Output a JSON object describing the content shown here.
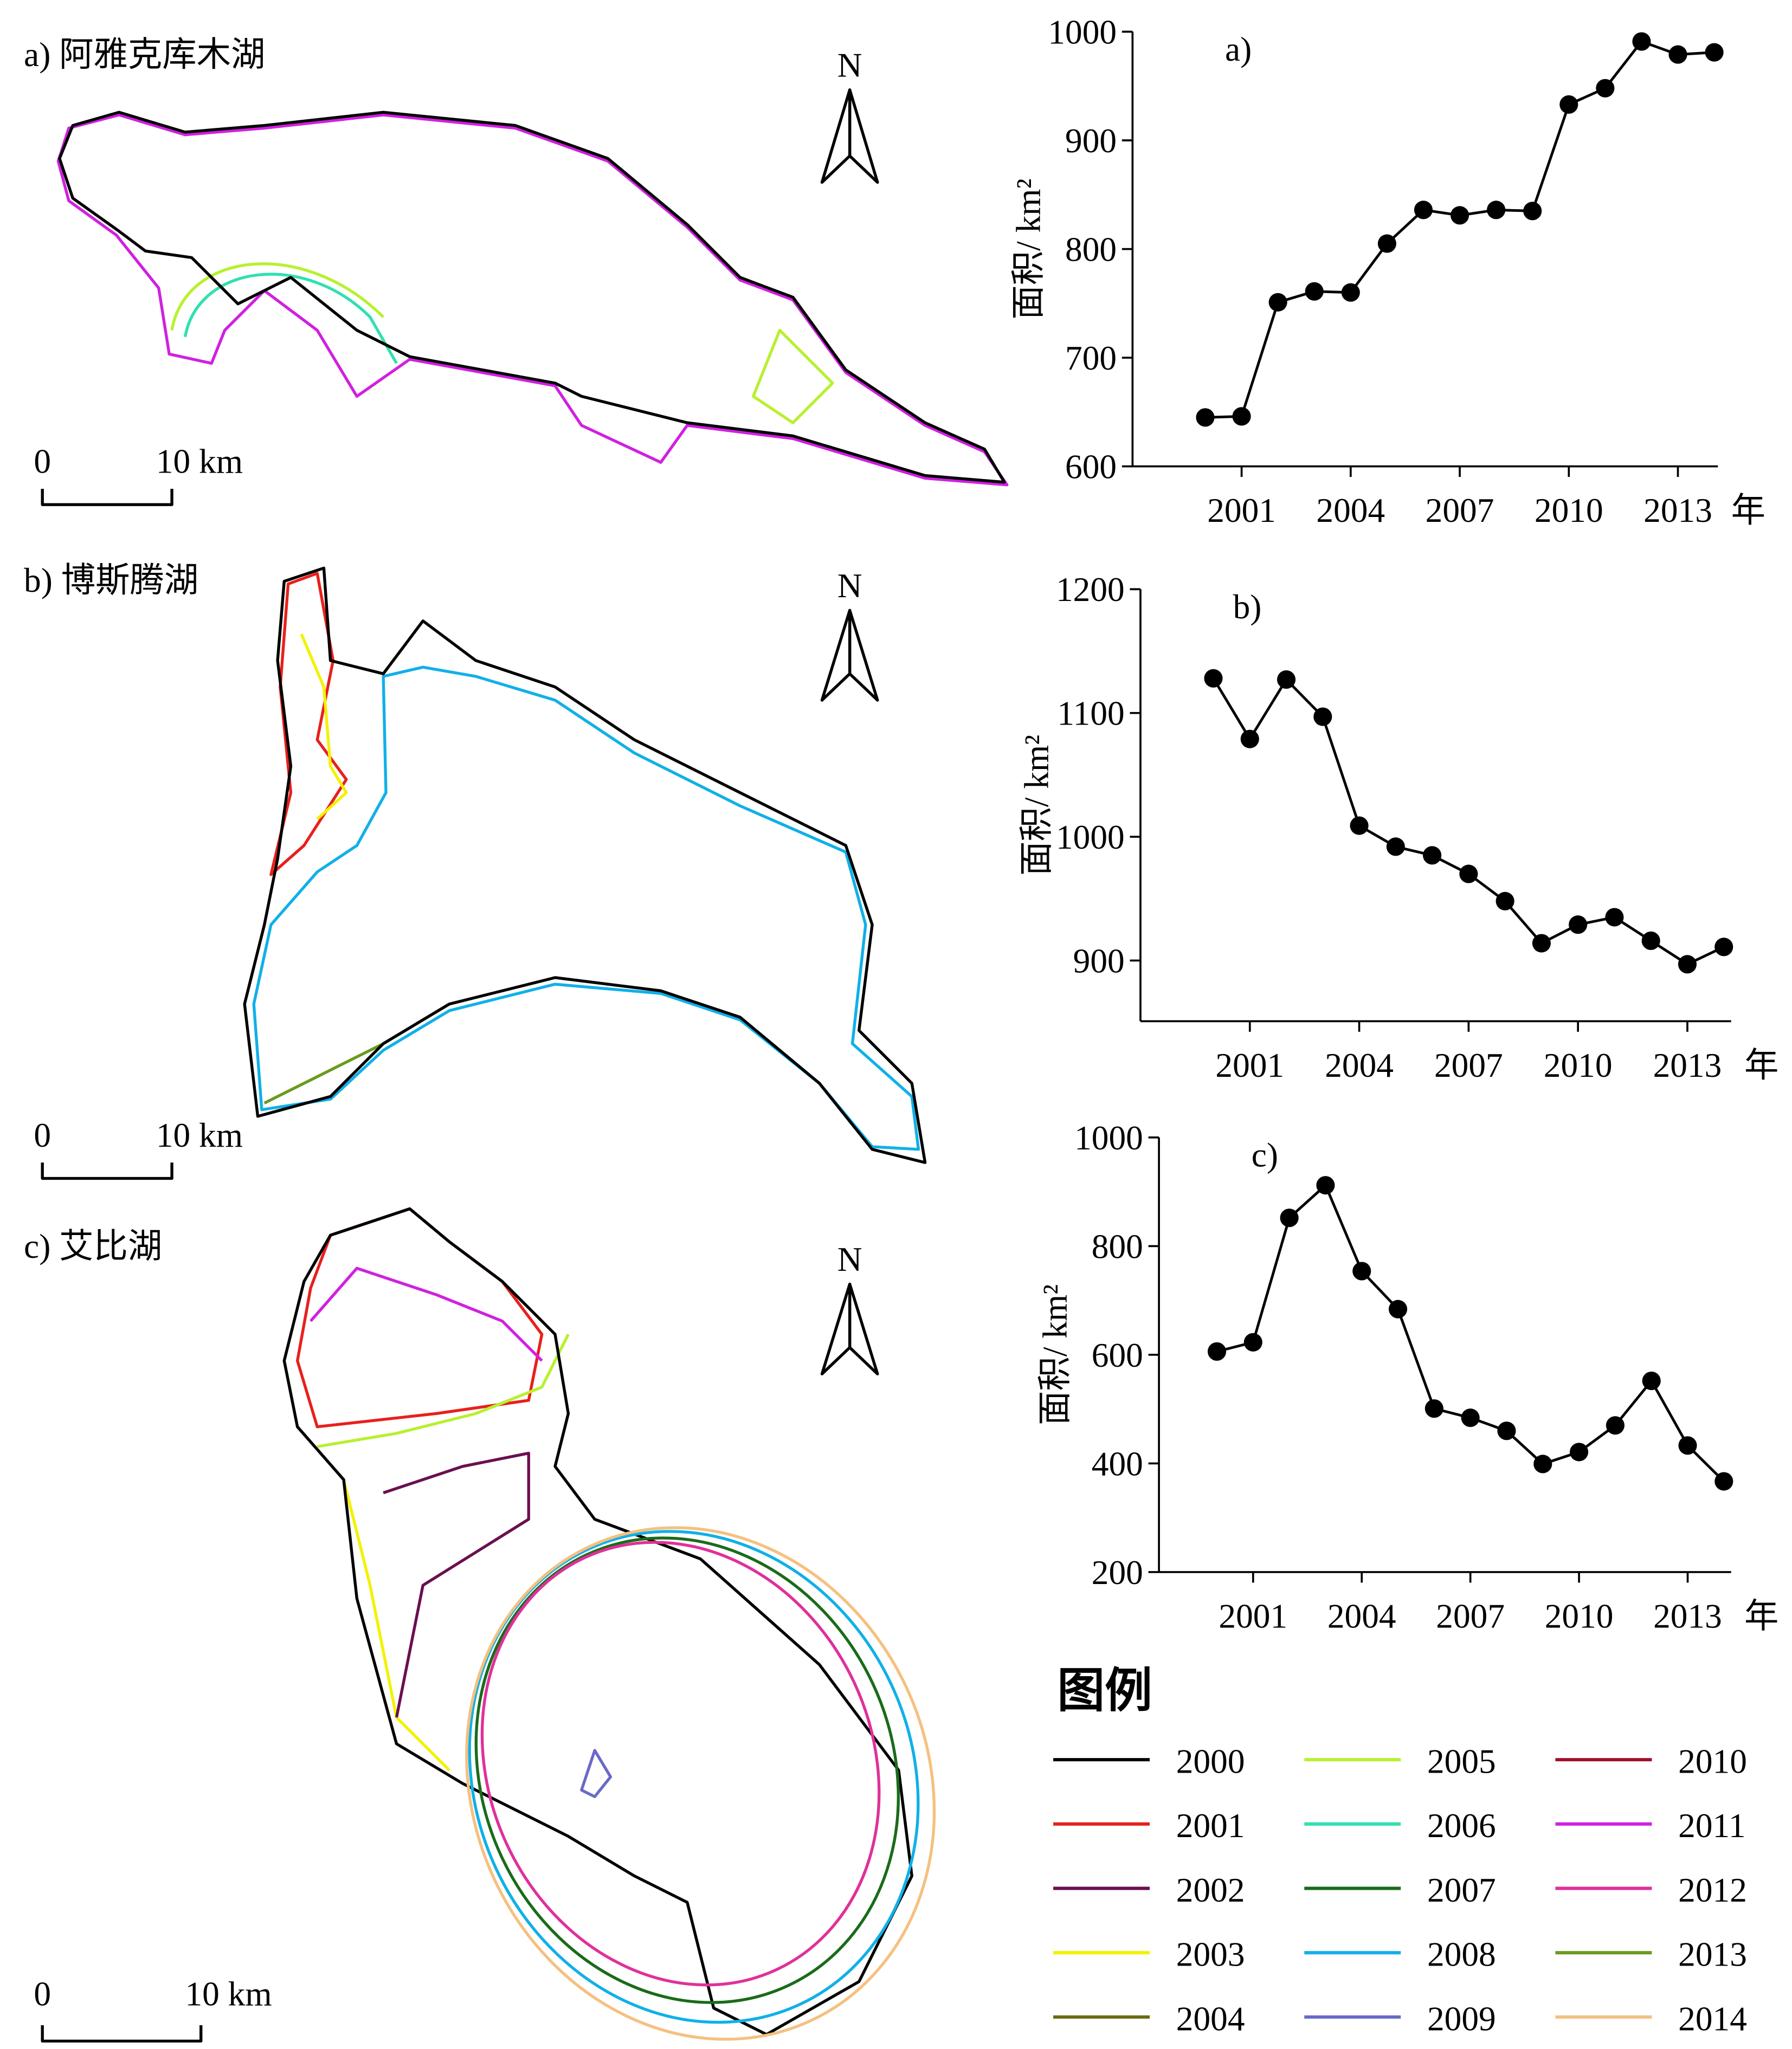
{
  "chart_data": [
    {
      "type": "line",
      "title": "a)",
      "ylabel": "面积/ km²",
      "xlabel": "年",
      "x": [
        2000,
        2001,
        2002,
        2003,
        2004,
        2005,
        2006,
        2007,
        2008,
        2009,
        2010,
        2011,
        2012,
        2013,
        2014
      ],
      "values": [
        645,
        646,
        751,
        761,
        760,
        805,
        836,
        831,
        836,
        835,
        933,
        948,
        991,
        979,
        981
      ],
      "color": "#000000",
      "xlim": [
        1998,
        2014.1
      ],
      "xticks": [
        2001,
        2004,
        2007,
        2010,
        2013
      ],
      "ylim": [
        600,
        1000
      ],
      "yticks": [
        600,
        700,
        800,
        900,
        1000
      ]
    },
    {
      "type": "line",
      "title": "b)",
      "ylabel": "面积/ km²",
      "xlabel": "年",
      "x": [
        2000,
        2001,
        2002,
        2003,
        2004,
        2005,
        2006,
        2007,
        2008,
        2009,
        2010,
        2011,
        2012,
        2013,
        2014
      ],
      "values": [
        1128,
        1079,
        1127,
        1097,
        1009,
        992,
        985,
        970,
        948,
        914,
        929,
        935,
        916,
        897,
        911
      ],
      "color": "#000000",
      "xlim": [
        1998,
        2014.2
      ],
      "xticks": [
        2001,
        2004,
        2007,
        2010,
        2013
      ],
      "ylim": [
        851,
        1200
      ],
      "yticks": [
        900,
        1000,
        1100,
        1200
      ]
    },
    {
      "type": "line",
      "title": "c)",
      "ylabel": "面积/ km²",
      "xlabel": "年",
      "x": [
        2000,
        2001,
        2002,
        2003,
        2004,
        2005,
        2006,
        2007,
        2008,
        2009,
        2010,
        2011,
        2012,
        2013,
        2014
      ],
      "values": [
        606,
        623,
        852,
        912,
        754,
        684,
        501,
        484,
        460,
        399,
        421,
        470,
        552,
        433,
        367
      ],
      "color": "#000000",
      "xlim": [
        1998.4,
        2014.2
      ],
      "xticks": [
        2001,
        2004,
        2007,
        2010,
        2013
      ],
      "ylim": [
        200,
        1000
      ],
      "yticks": [
        200,
        400,
        600,
        800,
        1000
      ]
    }
  ],
  "maps": [
    {
      "title": "a) 阿雅克库木湖",
      "north": "N",
      "scale_labels": [
        "0",
        "10 km"
      ]
    },
    {
      "title": "b) 博斯腾湖",
      "north": "N",
      "scale_labels": [
        "0",
        "10 km"
      ]
    },
    {
      "title": "c) 艾比湖",
      "north": "N",
      "scale_labels": [
        "0",
        "10 km"
      ]
    }
  ],
  "legend": {
    "title": "图例",
    "items": [
      {
        "name": "2000",
        "color": "#000000"
      },
      {
        "name": "2001",
        "color": "#e8201c"
      },
      {
        "name": "2002",
        "color": "#6b0f4f"
      },
      {
        "name": "2003",
        "color": "#f2f200"
      },
      {
        "name": "2004",
        "color": "#6b6b10"
      },
      {
        "name": "2005",
        "color": "#b8f030"
      },
      {
        "name": "2006",
        "color": "#30e0b0"
      },
      {
        "name": "2007",
        "color": "#1a6b1a"
      },
      {
        "name": "2008",
        "color": "#10b0e8"
      },
      {
        "name": "2009",
        "color": "#6a6ac8"
      },
      {
        "name": "2010",
        "color": "#a0102a"
      },
      {
        "name": "2011",
        "color": "#d020e0"
      },
      {
        "name": "2012",
        "color": "#e0309a"
      },
      {
        "name": "2013",
        "color": "#6a9a20"
      },
      {
        "name": "2014",
        "color": "#f5c080"
      }
    ]
  }
}
